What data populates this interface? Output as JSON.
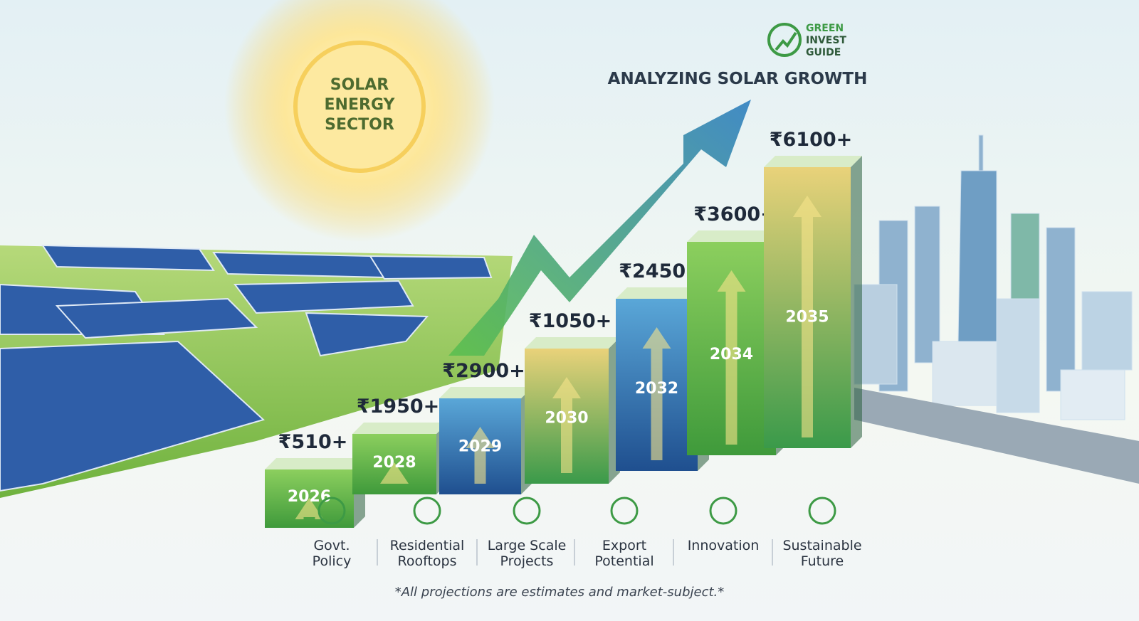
{
  "brand": {
    "line1": "GREEN",
    "line2": "INVEST",
    "line3": "GUIDE"
  },
  "sun_label": {
    "line1": "SOLAR",
    "line2": "ENERGY",
    "line3": "SECTOR"
  },
  "subtitle": "ANALYZING SOLAR GROWTH",
  "bars": [
    {
      "year": "2026",
      "value": "₹510+"
    },
    {
      "year": "2028",
      "value": "₹1950+"
    },
    {
      "year": "2029",
      "value": "₹2900+"
    },
    {
      "year": "2030",
      "value": "₹1050+"
    },
    {
      "year": "2032",
      "value": "₹2450+"
    },
    {
      "year": "2034",
      "value": "₹3600+"
    },
    {
      "year": "2035",
      "value": "₹6100+"
    }
  ],
  "categories": [
    {
      "line1": "Govt.",
      "line2": "Policy"
    },
    {
      "line1": "Residential",
      "line2": "Rooftops"
    },
    {
      "line1": "Large Scale",
      "line2": "Projects"
    },
    {
      "line1": "Export",
      "line2": "Potential"
    },
    {
      "line1": "Innovation"
    },
    {
      "line1": "Sustainable",
      "line2": "Future"
    }
  ],
  "footnote": "*All projections are estimates and market-subject.*"
}
